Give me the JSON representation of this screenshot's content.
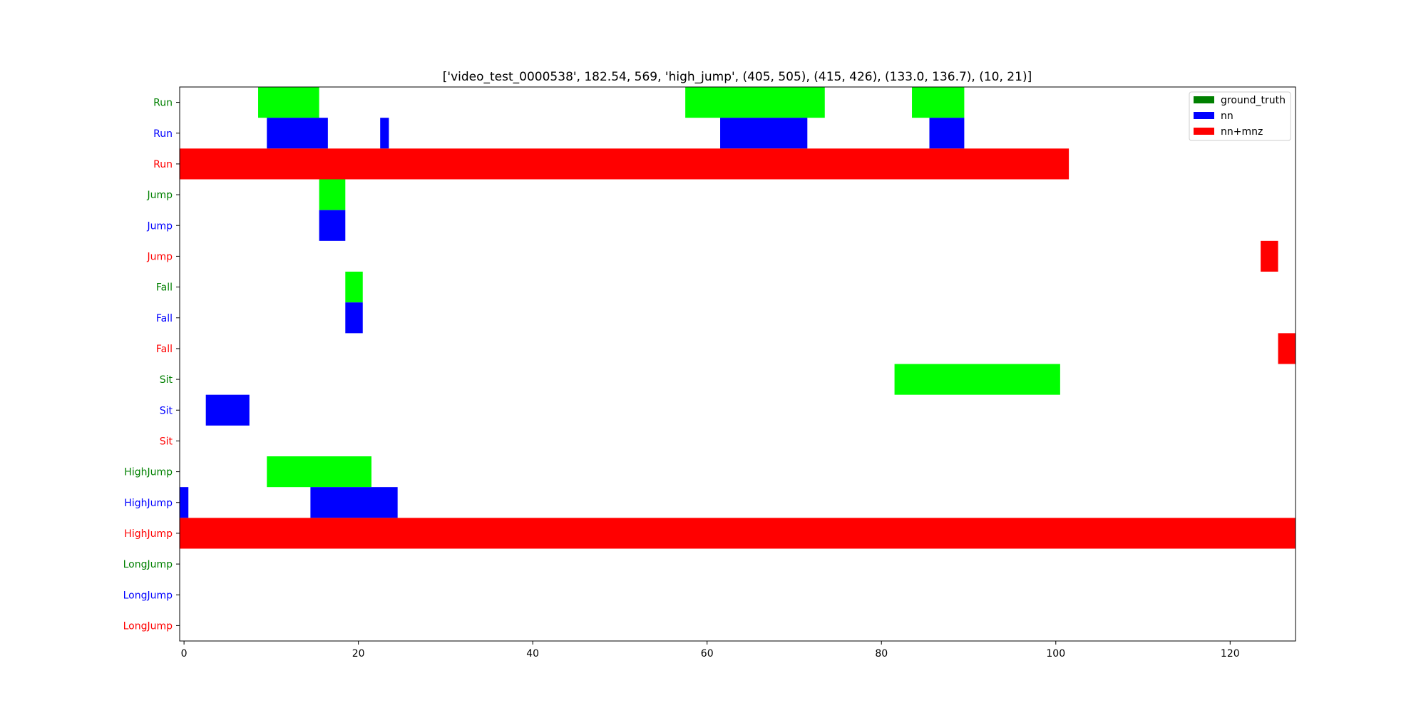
{
  "chart_data": {
    "type": "bar",
    "orientation": "horizontal-timeline",
    "title": "['video_test_0000538', 182.54, 569, 'high_jump', (405, 505), (415, 426), (133.0, 136.7), (10, 21)]",
    "xlabel": "",
    "ylabel": "",
    "xlim": [
      -0.5,
      127.5
    ],
    "x_ticks": [
      0,
      20,
      40,
      60,
      80,
      100,
      120
    ],
    "grid": false,
    "legend_position": "top-right",
    "legend": [
      {
        "name": "ground_truth",
        "color": "#008000"
      },
      {
        "name": "nn",
        "color": "#0000ff"
      },
      {
        "name": "nn+mnz",
        "color": "#ff0000"
      }
    ],
    "series_colors": {
      "ground_truth": {
        "bar": "#00ff00",
        "label": "#008000"
      },
      "nn": {
        "bar": "#0000ff",
        "label": "#0000ff"
      },
      "nn+mnz": {
        "bar": "#ff0000",
        "label": "#ff0000"
      }
    },
    "rows": [
      {
        "label": "Run",
        "series": "ground_truth",
        "segments": [
          [
            8.5,
            15.5
          ],
          [
            57.5,
            73.5
          ],
          [
            83.5,
            89.5
          ]
        ]
      },
      {
        "label": "Run",
        "series": "nn",
        "segments": [
          [
            9.5,
            16.5
          ],
          [
            22.5,
            23.5
          ],
          [
            61.5,
            71.5
          ],
          [
            85.5,
            89.5
          ]
        ]
      },
      {
        "label": "Run",
        "series": "nn+mnz",
        "segments": [
          [
            -0.5,
            101.5
          ]
        ]
      },
      {
        "label": "Jump",
        "series": "ground_truth",
        "segments": [
          [
            15.5,
            18.5
          ]
        ]
      },
      {
        "label": "Jump",
        "series": "nn",
        "segments": [
          [
            15.5,
            18.5
          ]
        ]
      },
      {
        "label": "Jump",
        "series": "nn+mnz",
        "segments": [
          [
            123.5,
            125.5
          ]
        ]
      },
      {
        "label": "Fall",
        "series": "ground_truth",
        "segments": [
          [
            18.5,
            20.5
          ]
        ]
      },
      {
        "label": "Fall",
        "series": "nn",
        "segments": [
          [
            18.5,
            20.5
          ]
        ]
      },
      {
        "label": "Fall",
        "series": "nn+mnz",
        "segments": [
          [
            125.5,
            127.5
          ]
        ]
      },
      {
        "label": "Sit",
        "series": "ground_truth",
        "segments": [
          [
            81.5,
            100.5
          ]
        ]
      },
      {
        "label": "Sit",
        "series": "nn",
        "segments": [
          [
            2.5,
            7.5
          ]
        ]
      },
      {
        "label": "Sit",
        "series": "nn+mnz",
        "segments": []
      },
      {
        "label": "HighJump",
        "series": "ground_truth",
        "segments": [
          [
            9.5,
            21.5
          ]
        ]
      },
      {
        "label": "HighJump",
        "series": "nn",
        "segments": [
          [
            -0.5,
            0.5
          ],
          [
            14.5,
            24.5
          ]
        ]
      },
      {
        "label": "HighJump",
        "series": "nn+mnz",
        "segments": [
          [
            -0.5,
            127.5
          ]
        ]
      },
      {
        "label": "LongJump",
        "series": "ground_truth",
        "segments": []
      },
      {
        "label": "LongJump",
        "series": "nn",
        "segments": []
      },
      {
        "label": "LongJump",
        "series": "nn+mnz",
        "segments": []
      }
    ]
  }
}
